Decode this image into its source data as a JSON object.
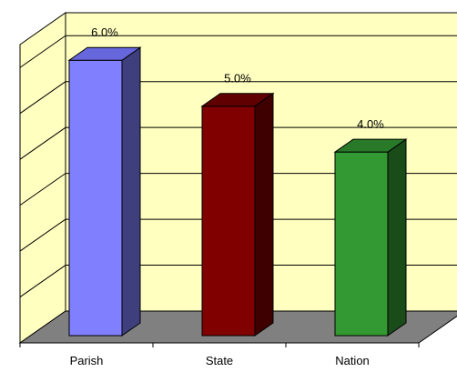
{
  "chart_data": {
    "type": "bar",
    "title": "",
    "xlabel": "",
    "ylabel": "",
    "categories": [
      "Parish",
      "State",
      "Nation"
    ],
    "values": [
      6.0,
      5.0,
      4.0
    ],
    "data_labels": [
      "6.0%",
      "5.0%",
      "4.0%"
    ],
    "ylim": [
      0,
      6.5
    ],
    "grid": true,
    "three_d": true,
    "legend": "none",
    "colors": {
      "bars": [
        {
          "front": "#8080ff",
          "side": "#3f3f7e",
          "top": "#6767dd"
        },
        {
          "front": "#800000",
          "side": "#3e0000",
          "top": "#600000"
        },
        {
          "front": "#339933",
          "side": "#1a4c1a",
          "top": "#287a28"
        }
      ],
      "wall": "#ffffc0",
      "floor": "#808080",
      "grid": "#000000"
    }
  }
}
